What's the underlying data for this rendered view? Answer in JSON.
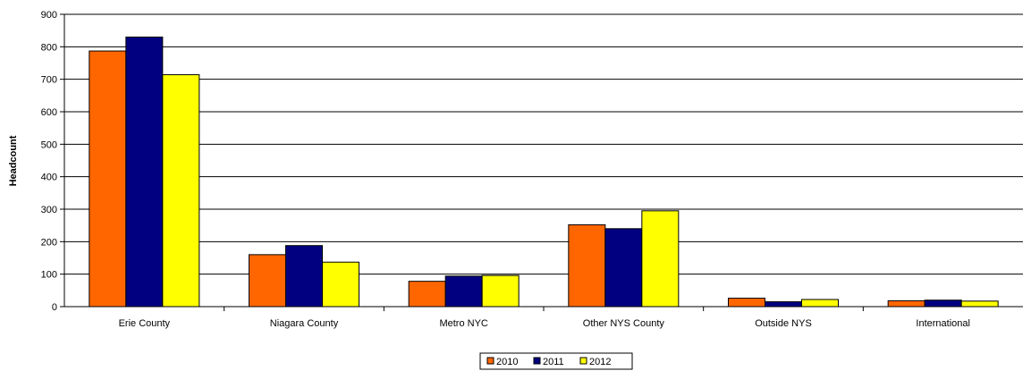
{
  "chart_data": {
    "type": "bar",
    "title": "",
    "xlabel": "",
    "ylabel": "Headcount",
    "ylim": [
      0,
      900
    ],
    "yticks": [
      0,
      100,
      200,
      300,
      400,
      500,
      600,
      700,
      800,
      900
    ],
    "grid": true,
    "legend_position": "bottom",
    "categories": [
      "Erie County",
      "Niagara County",
      "Metro NYC",
      "Other NYS County",
      "Outside NYS",
      "International"
    ],
    "series": [
      {
        "name": "2010",
        "color": "#ff6600",
        "values": [
          787,
          160,
          78,
          252,
          26,
          18
        ]
      },
      {
        "name": "2011",
        "color": "#000080",
        "values": [
          830,
          188,
          94,
          240,
          15,
          20
        ]
      },
      {
        "name": "2012",
        "color": "#ffff00",
        "values": [
          714,
          137,
          96,
          295,
          22,
          17
        ]
      }
    ]
  }
}
